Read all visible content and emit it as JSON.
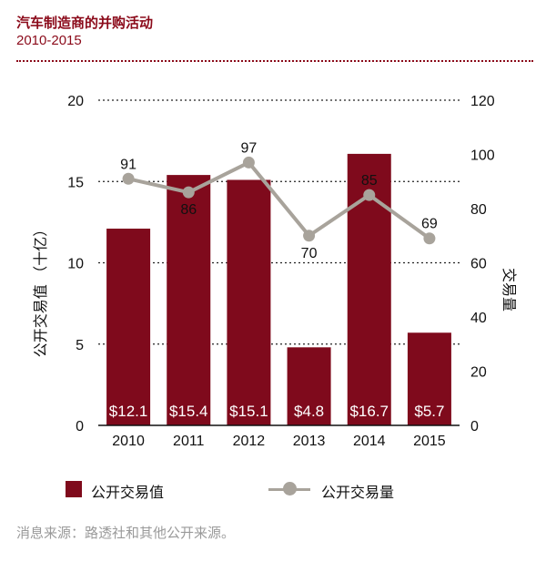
{
  "header": {
    "title": "汽车制造商的并购活动",
    "subtitle": "2010-2015"
  },
  "legend": {
    "bar_label": "公开交易值",
    "line_label": "公开交易量"
  },
  "source": "消息来源：路透社和其他公开来源。",
  "colors": {
    "bar": "#7f0a1c",
    "line": "#a8a39b",
    "accent": "#8b0a1a"
  },
  "chart_data": {
    "type": "bar",
    "categories": [
      "2010",
      "2011",
      "2012",
      "2013",
      "2014",
      "2015"
    ],
    "series": [
      {
        "name": "公开交易值",
        "type": "bar",
        "axis": "left",
        "values": [
          12.1,
          15.4,
          15.1,
          4.8,
          16.7,
          5.7
        ],
        "labels": [
          "$12.1",
          "$15.4",
          "$15.1",
          "$4.8",
          "$16.7",
          "$5.7"
        ]
      },
      {
        "name": "公开交易量",
        "type": "line",
        "axis": "right",
        "values": [
          91,
          86,
          97,
          70,
          85,
          69
        ],
        "labels": [
          "91",
          "86",
          "97",
          "70",
          "85",
          "69"
        ]
      }
    ],
    "ylabel": "公开交易值 （十亿）",
    "y2label": "交易量",
    "ylim": [
      0,
      20
    ],
    "y2lim": [
      0,
      120
    ],
    "yticks": [
      "0",
      "5",
      "10",
      "15",
      "20"
    ],
    "y2ticks": [
      "0",
      "20",
      "40",
      "60",
      "80",
      "100",
      "120"
    ],
    "grid": "dotted horizontal"
  }
}
